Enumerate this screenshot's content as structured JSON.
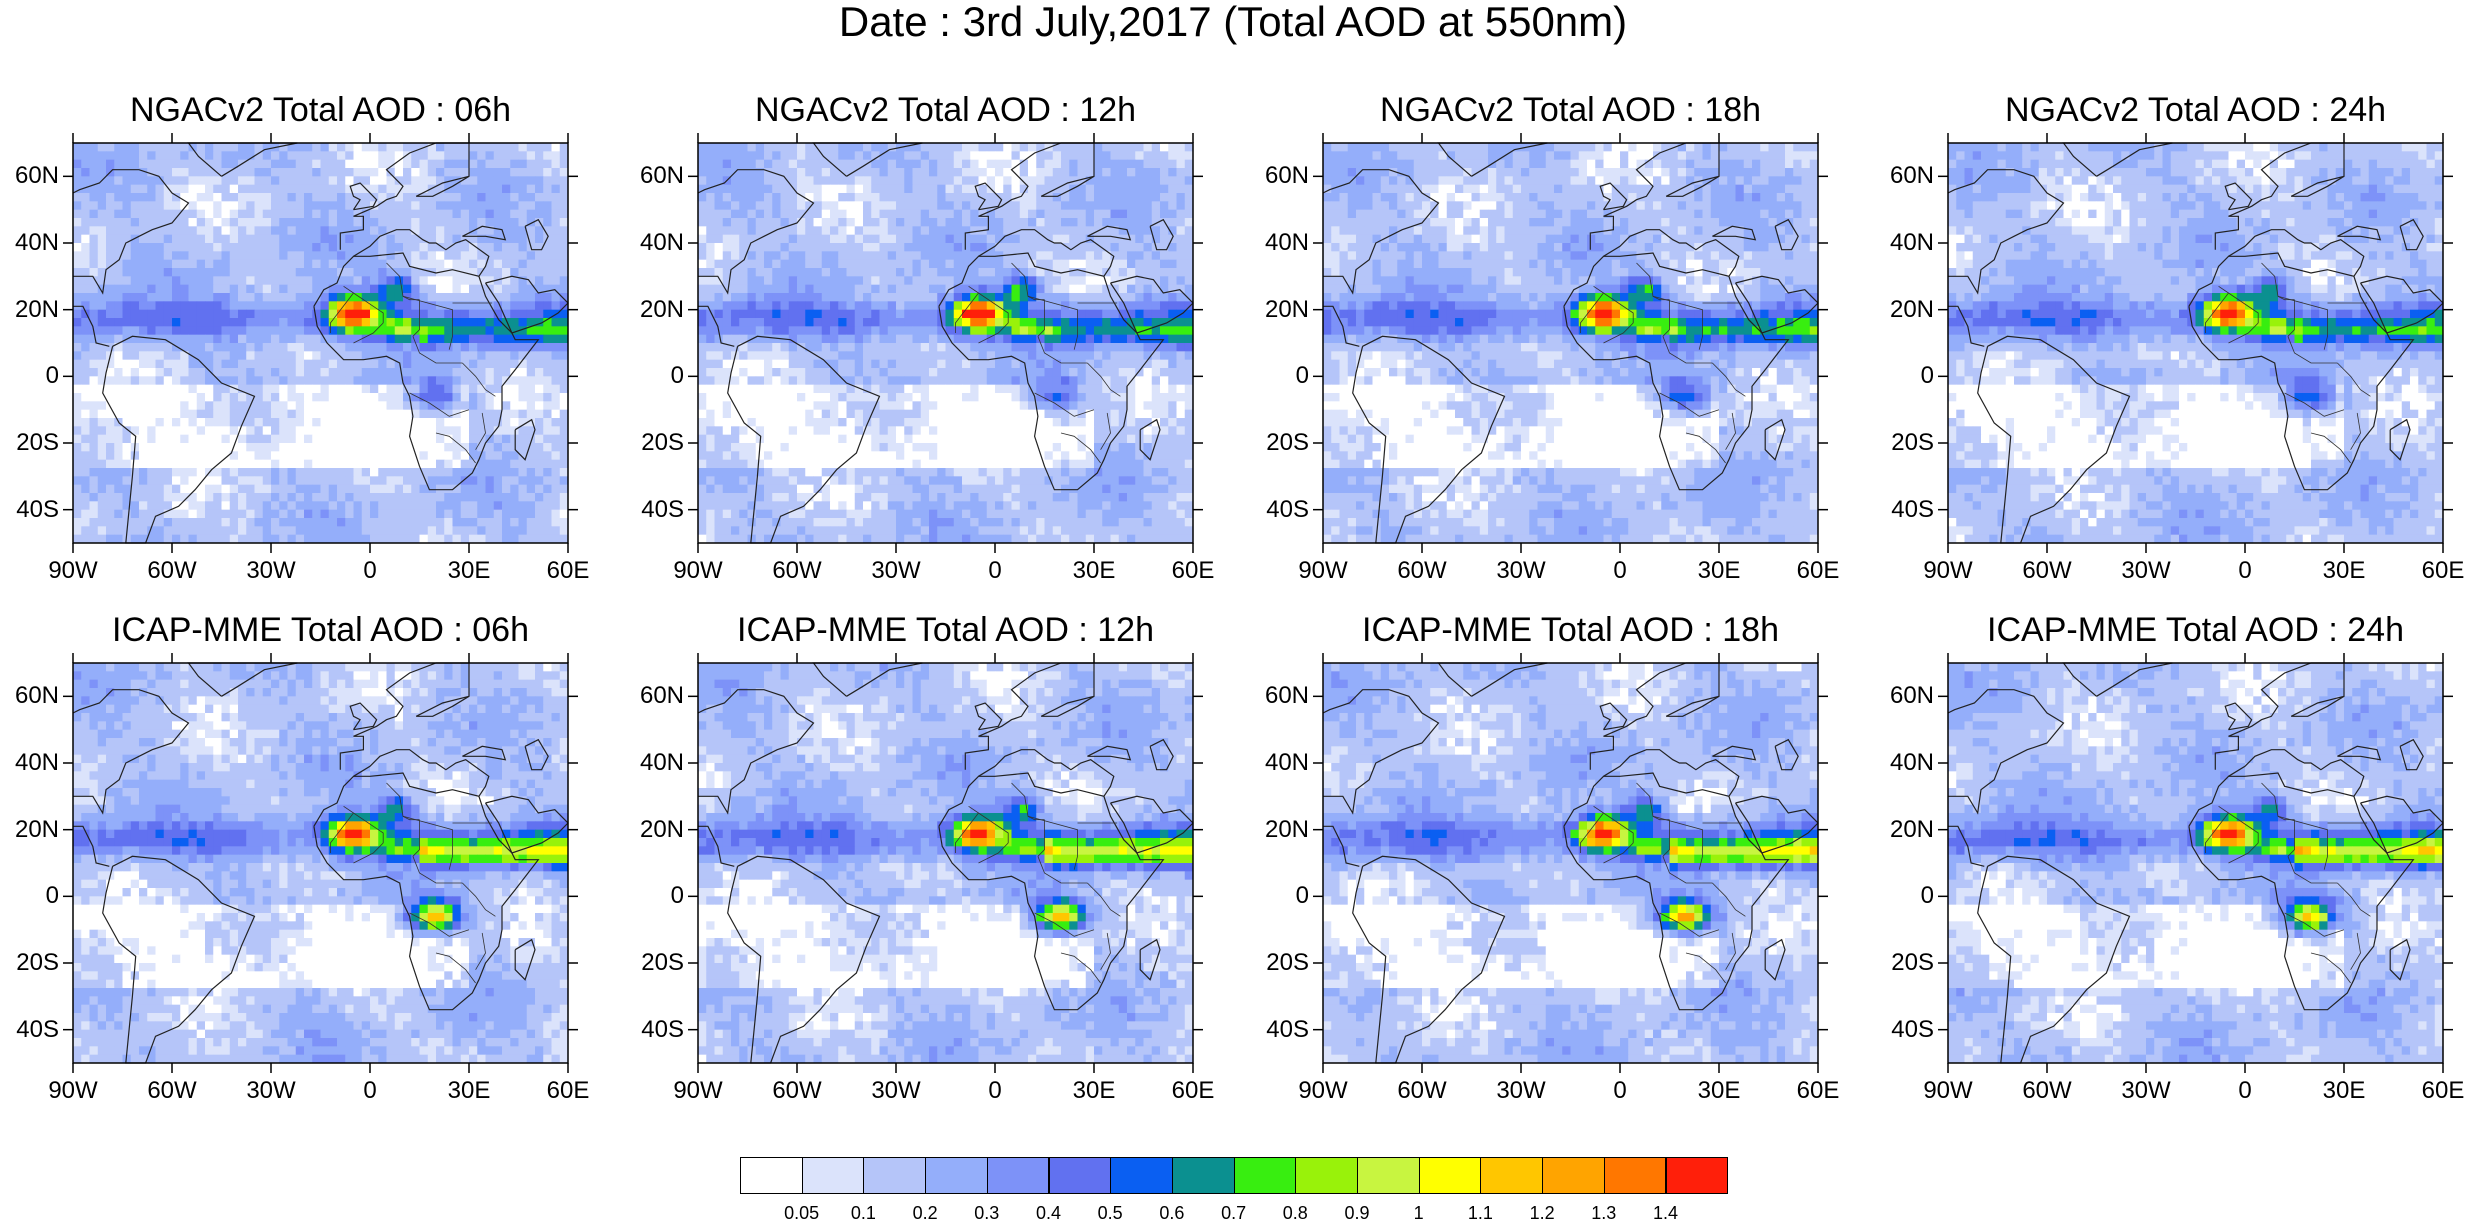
{
  "title": "Date : 3rd July,2017 (Total AOD at 550nm)",
  "lat_ticks": [
    "60N",
    "40N",
    "20N",
    "0",
    "20S",
    "40S"
  ],
  "lon_ticks": [
    "90W",
    "60W",
    "30W",
    "0",
    "30E",
    "60E"
  ],
  "panels": [
    {
      "title": "NGACv2 Total AOD : 06h",
      "model": "NGACv2",
      "hour": "06h",
      "plume": 1.0,
      "central_africa": 0.35,
      "sahel": 0.45
    },
    {
      "title": "NGACv2 Total AOD : 12h",
      "model": "NGACv2",
      "hour": "12h",
      "plume": 1.0,
      "central_africa": 0.4,
      "sahel": 0.45
    },
    {
      "title": "NGACv2 Total AOD : 18h",
      "model": "NGACv2",
      "hour": "18h",
      "plume": 1.0,
      "central_africa": 0.45,
      "sahel": 0.45
    },
    {
      "title": "NGACv2 Total AOD : 24h",
      "model": "NGACv2",
      "hour": "24h",
      "plume": 0.95,
      "central_africa": 0.5,
      "sahel": 0.45
    },
    {
      "title": "ICAP-MME Total AOD : 06h",
      "model": "ICAP-MME",
      "hour": "06h",
      "plume": 0.9,
      "central_africa": 1.0,
      "sahel": 0.9
    },
    {
      "title": "ICAP-MME Total AOD : 12h",
      "model": "ICAP-MME",
      "hour": "12h",
      "plume": 0.9,
      "central_africa": 1.0,
      "sahel": 0.9
    },
    {
      "title": "ICAP-MME Total AOD : 18h",
      "model": "ICAP-MME",
      "hour": "18h",
      "plume": 0.9,
      "central_africa": 1.05,
      "sahel": 0.9
    },
    {
      "title": "ICAP-MME Total AOD : 24h",
      "model": "ICAP-MME",
      "hour": "24h",
      "plume": 0.9,
      "central_africa": 1.0,
      "sahel": 0.9
    }
  ],
  "colorbar": {
    "labels": [
      "0.05",
      "0.1",
      "0.2",
      "0.3",
      "0.4",
      "0.5",
      "0.6",
      "0.7",
      "0.8",
      "0.9",
      "1",
      "1.1",
      "1.2",
      "1.3",
      "1.4"
    ],
    "colors": [
      "#ffffff",
      "#dbe3fb",
      "#b5c5f9",
      "#94aefa",
      "#7d92f8",
      "#6171f0",
      "#0a5ff2",
      "#0b9090",
      "#38ee10",
      "#99f20a",
      "#c8f540",
      "#ffff00",
      "#ffc600",
      "#ffa400",
      "#ff7700",
      "#ff1f0a"
    ]
  }
}
